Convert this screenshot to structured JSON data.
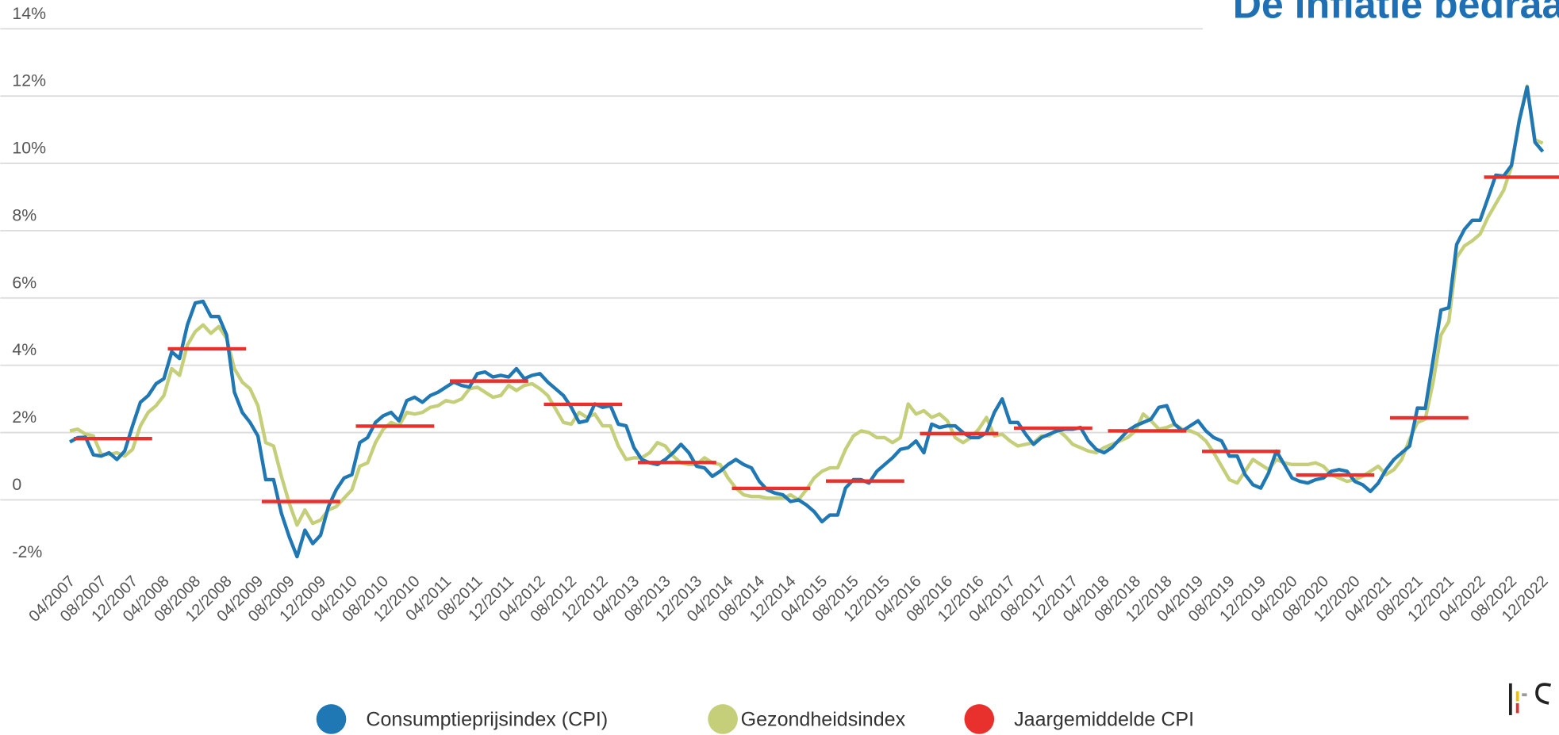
{
  "chart_data": {
    "type": "line",
    "title": "De inflatie bedraag",
    "categories": [
      "04/2007",
      null,
      null,
      null,
      "08/2007",
      null,
      null,
      null,
      "12/2007",
      null,
      null,
      null,
      "04/2008",
      null,
      null,
      null,
      "08/2008",
      null,
      null,
      null,
      "12/2008",
      null,
      null,
      null,
      "04/2009",
      null,
      null,
      null,
      "08/2009",
      null,
      null,
      null,
      "12/2009",
      null,
      null,
      null,
      "04/2010",
      null,
      null,
      null,
      "08/2010",
      null,
      null,
      null,
      "12/2010",
      null,
      null,
      null,
      "04/2011",
      null,
      null,
      null,
      "08/2011",
      null,
      null,
      null,
      "12/2011",
      null,
      null,
      null,
      "04/2012",
      null,
      null,
      null,
      "08/2012",
      null,
      null,
      null,
      "12/2012",
      null,
      null,
      null,
      "04/2013",
      null,
      null,
      null,
      "08/2013",
      null,
      null,
      null,
      "12/2013",
      null,
      null,
      null,
      "04/2014",
      null,
      null,
      null,
      "08/2014",
      null,
      null,
      null,
      "12/2014",
      null,
      null,
      null,
      "04/2015",
      null,
      null,
      null,
      "08/2015",
      null,
      null,
      null,
      "12/2015",
      null,
      null,
      null,
      "04/2016",
      null,
      null,
      null,
      "08/2016",
      null,
      null,
      null,
      "12/2016",
      null,
      null,
      null,
      "04/2017",
      null,
      null,
      null,
      "08/2017",
      null,
      null,
      null,
      "12/2017",
      null,
      null,
      null,
      "04/2018",
      null,
      null,
      null,
      "08/2018",
      null,
      null,
      null,
      "12/2018",
      null,
      null,
      null,
      "04/2019",
      null,
      null,
      null,
      "08/2019",
      null,
      null,
      null,
      "12/2019",
      null,
      null,
      null,
      "04/2020",
      null,
      null,
      null,
      "08/2020",
      null,
      null,
      null,
      "12/2020",
      null,
      null,
      null,
      "04/2021",
      null,
      null,
      null,
      "08/2021",
      null,
      null,
      null,
      "12/2021",
      null,
      null,
      null,
      "04/2022",
      null,
      null,
      null,
      "08/2022",
      null,
      null,
      null,
      "12/2022"
    ],
    "series": [
      {
        "name": "Consumptieprijsindex (CPI)",
        "color": "#1f77b4",
        "values": [
          1.72,
          1.85,
          1.86,
          1.34,
          1.3,
          1.4,
          1.2,
          1.45,
          2.2,
          2.9,
          3.1,
          3.45,
          3.6,
          4.4,
          4.2,
          5.2,
          5.85,
          5.9,
          5.45,
          5.45,
          4.9,
          3.2,
          2.6,
          2.3,
          1.9,
          0.6,
          0.6,
          -0.4,
          -1.1,
          -1.69,
          -0.9,
          -1.3,
          -1.05,
          -0.2,
          0.3,
          0.65,
          0.75,
          1.7,
          1.85,
          2.3,
          2.5,
          2.6,
          2.35,
          2.95,
          3.05,
          2.9,
          3.1,
          3.2,
          3.35,
          3.5,
          3.4,
          3.35,
          3.75,
          3.8,
          3.65,
          3.7,
          3.65,
          3.9,
          3.6,
          3.7,
          3.75,
          3.5,
          3.3,
          3.1,
          2.75,
          2.3,
          2.35,
          2.85,
          2.75,
          2.8,
          2.25,
          2.2,
          1.55,
          1.2,
          1.1,
          1.05,
          1.2,
          1.4,
          1.65,
          1.4,
          1.0,
          0.95,
          0.7,
          0.85,
          1.05,
          1.2,
          1.05,
          0.95,
          0.55,
          0.3,
          0.2,
          0.15,
          -0.05,
          0.0,
          -0.15,
          -0.35,
          -0.65,
          -0.45,
          -0.45,
          0.35,
          0.6,
          0.6,
          0.5,
          0.85,
          1.05,
          1.25,
          1.5,
          1.55,
          1.75,
          1.4,
          2.25,
          2.15,
          2.2,
          2.2,
          2.0,
          1.85,
          1.85,
          2.0,
          2.6,
          3.0,
          2.3,
          2.3,
          1.95,
          1.65,
          1.85,
          1.95,
          2.05,
          2.1,
          2.1,
          2.15,
          1.75,
          1.5,
          1.4,
          1.55,
          1.8,
          2.05,
          2.2,
          2.3,
          2.4,
          2.75,
          2.8,
          2.25,
          2.05,
          2.2,
          2.35,
          2.05,
          1.85,
          1.75,
          1.3,
          1.3,
          0.75,
          0.45,
          0.35,
          0.8,
          1.45,
          1.05,
          0.65,
          0.55,
          0.5,
          0.6,
          0.65,
          0.85,
          0.9,
          0.85,
          0.55,
          0.45,
          0.25,
          0.5,
          0.9,
          1.2,
          1.4,
          1.6,
          2.73,
          2.72,
          4.16,
          5.64,
          5.71,
          7.59,
          8.04,
          8.31,
          8.31,
          8.97,
          9.65,
          9.62,
          9.94,
          11.27,
          12.27,
          10.63,
          10.35
        ]
      },
      {
        "name": "Gezondheidsindex",
        "color": "#c5cf7a",
        "values": [
          2.05,
          2.1,
          1.95,
          1.9,
          1.35,
          1.35,
          1.4,
          1.3,
          1.5,
          2.2,
          2.6,
          2.8,
          3.1,
          3.9,
          3.7,
          4.6,
          5.0,
          5.2,
          4.95,
          5.15,
          4.8,
          3.9,
          3.5,
          3.3,
          2.8,
          1.7,
          1.6,
          0.7,
          -0.1,
          -0.75,
          -0.3,
          -0.7,
          -0.6,
          -0.3,
          -0.2,
          0.05,
          0.3,
          1.0,
          1.1,
          1.7,
          2.1,
          2.3,
          2.2,
          2.6,
          2.55,
          2.6,
          2.75,
          2.8,
          2.95,
          2.9,
          3.0,
          3.3,
          3.35,
          3.2,
          3.05,
          3.1,
          3.4,
          3.25,
          3.4,
          3.45,
          3.3,
          3.1,
          2.7,
          2.3,
          2.25,
          2.6,
          2.45,
          2.55,
          2.2,
          2.2,
          1.6,
          1.2,
          1.25,
          1.25,
          1.4,
          1.7,
          1.6,
          1.3,
          1.1,
          1.05,
          1.05,
          1.25,
          1.1,
          1.05,
          0.65,
          0.35,
          0.15,
          0.1,
          0.1,
          0.05,
          0.05,
          0.05,
          0.15,
          0.0,
          0.3,
          0.65,
          0.85,
          0.95,
          0.95,
          1.5,
          1.9,
          2.05,
          2.0,
          1.85,
          1.85,
          1.7,
          1.85,
          2.85,
          2.55,
          2.65,
          2.45,
          2.55,
          2.35,
          1.85,
          1.7,
          1.85,
          2.1,
          2.45,
          1.9,
          1.95,
          1.75,
          1.6,
          1.65,
          1.7,
          1.9,
          1.9,
          2.1,
          1.9,
          1.65,
          1.55,
          1.45,
          1.4,
          1.55,
          1.65,
          1.75,
          1.85,
          2.05,
          2.55,
          2.35,
          2.1,
          2.15,
          2.25,
          2.1,
          2.05,
          1.95,
          1.75,
          1.4,
          1.0,
          0.6,
          0.5,
          0.85,
          1.2,
          1.05,
          0.9,
          1.2,
          1.1,
          1.05,
          1.05,
          1.05,
          1.1,
          1.0,
          0.75,
          0.65,
          0.55,
          0.6,
          0.7,
          0.85,
          1.0,
          0.75,
          0.9,
          1.2,
          1.8,
          2.3,
          2.4,
          3.5,
          4.9,
          5.3,
          7.2,
          7.55,
          7.7,
          7.9,
          8.4,
          8.8,
          9.2,
          9.9,
          11.3,
          12.3,
          10.7,
          10.6
        ]
      }
    ],
    "annual_series": {
      "name": "Jaargemiddelde CPI",
      "color": "#e8302c",
      "values": [
        1.82,
        4.49,
        -0.05,
        2.19,
        3.53,
        2.84,
        1.11,
        0.34,
        0.56,
        1.97,
        2.13,
        2.05,
        1.44,
        0.74,
        2.44,
        9.59
      ]
    },
    "ylim": [
      -2,
      14
    ],
    "yticks": [
      {
        "value": -2,
        "label": "-2%"
      },
      0,
      {
        "value": 2,
        "label": "2%"
      },
      {
        "value": 4,
        "label": "4%"
      },
      {
        "value": 6,
        "label": "6%"
      },
      {
        "value": 8,
        "label": "8%"
      },
      {
        "value": 10,
        "label": "10%"
      },
      {
        "value": 12,
        "label": "12%"
      },
      {
        "value": 14,
        "label": "14%"
      }
    ],
    "grid": true
  }
}
